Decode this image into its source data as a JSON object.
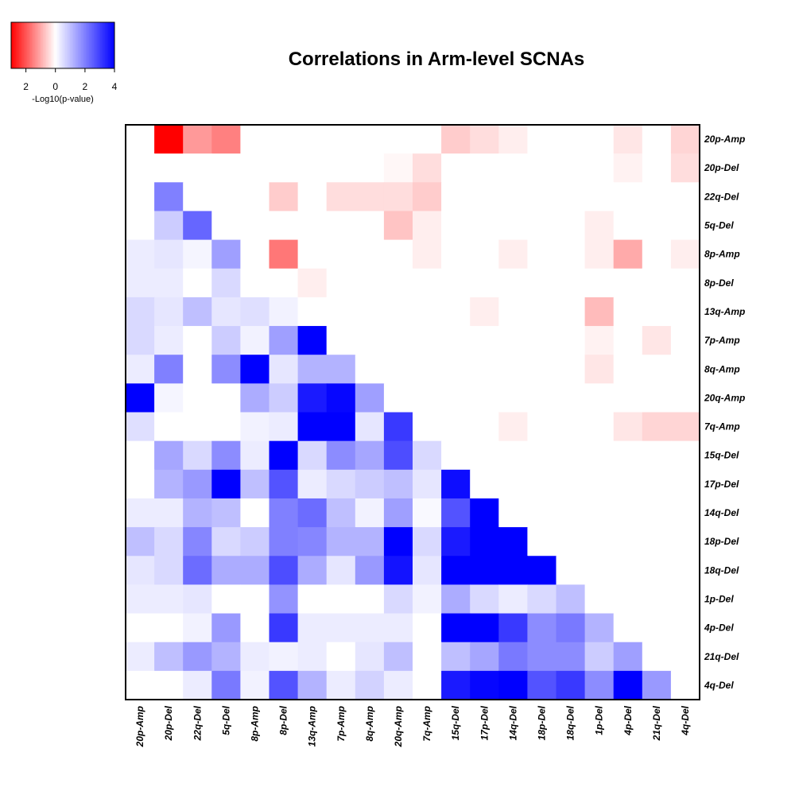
{
  "chart_data": {
    "type": "heatmap",
    "title": "Correlations in Arm-level SCNAs",
    "rows": [
      "20p-Amp",
      "20p-Del",
      "22q-Del",
      "5q-Del",
      "8p-Amp",
      "8p-Del",
      "13q-Amp",
      "7p-Amp",
      "8q-Amp",
      "20q-Amp",
      "7q-Amp",
      "15q-Del",
      "17p-Del",
      "14q-Del",
      "18p-Del",
      "18q-Del",
      "1p-Del",
      "4p-Del",
      "21q-Del",
      "4q-Del"
    ],
    "columns": [
      "20p-Amp",
      "20p-Del",
      "22q-Del",
      "5q-Del",
      "8p-Amp",
      "8p-Del",
      "13q-Amp",
      "7p-Amp",
      "8q-Amp",
      "20q-Amp",
      "7q-Amp",
      "15q-Del",
      "17p-Del",
      "14q-Del",
      "18p-Del",
      "18q-Del",
      "1p-Del",
      "4p-Del",
      "21q-Del",
      "4q-Del"
    ],
    "values": [
      [
        0,
        -3.0,
        -1.2,
        -1.5,
        0,
        0,
        0,
        0,
        0,
        0,
        0,
        -0.6,
        -0.4,
        -0.2,
        0,
        0,
        0,
        -0.3,
        0,
        -0.5
      ],
      [
        0,
        0,
        0,
        0,
        0,
        0,
        0,
        0,
        0,
        -0.1,
        -0.4,
        0,
        0,
        0,
        0,
        0,
        0,
        -0.15,
        0,
        -0.4
      ],
      [
        0,
        2.0,
        0,
        0,
        0,
        -0.6,
        0,
        -0.4,
        -0.4,
        -0.4,
        -0.6,
        0,
        0,
        0,
        0,
        0,
        0,
        0,
        0,
        0
      ],
      [
        0,
        0.8,
        2.4,
        0,
        0,
        0,
        0,
        0,
        0,
        -0.7,
        -0.2,
        0,
        0,
        0,
        0,
        0,
        -0.2,
        0,
        0,
        0
      ],
      [
        0.3,
        0.4,
        0.15,
        1.5,
        0,
        -1.6,
        0,
        0,
        0,
        0,
        -0.2,
        0,
        0,
        -0.2,
        0,
        0,
        -0.2,
        -1.0,
        0,
        -0.2
      ],
      [
        0.3,
        0.3,
        0,
        0.6,
        0,
        0,
        -0.2,
        0,
        0,
        0,
        0,
        0,
        0,
        0,
        0,
        0,
        0,
        0,
        0,
        0
      ],
      [
        0.6,
        0.4,
        1.0,
        0.4,
        0.5,
        0.2,
        0,
        0,
        0,
        0,
        0,
        0,
        -0.2,
        0,
        0,
        0,
        -0.8,
        0,
        0,
        0
      ],
      [
        0.6,
        0.3,
        0,
        0.8,
        0.2,
        1.5,
        4.0,
        0,
        0,
        0,
        0,
        0,
        0,
        0,
        0,
        0,
        -0.15,
        0,
        -0.3,
        0
      ],
      [
        0.3,
        2.0,
        0,
        1.8,
        4.0,
        0.4,
        1.2,
        1.2,
        0,
        0,
        0,
        0,
        0,
        0,
        0,
        0,
        -0.3,
        0,
        0,
        0
      ],
      [
        4.0,
        0.15,
        0,
        0,
        1.3,
        0.8,
        3.6,
        3.9,
        1.5,
        0,
        0,
        0,
        0,
        0,
        0,
        0,
        0,
        0,
        0,
        0
      ],
      [
        0.5,
        0,
        0,
        0,
        0.2,
        0.3,
        4.0,
        4.0,
        0.4,
        3.1,
        0,
        0,
        0,
        -0.2,
        0,
        0,
        0,
        -0.3,
        -0.5,
        -0.5
      ],
      [
        0,
        1.4,
        0.6,
        1.8,
        0.3,
        4.0,
        0.6,
        1.8,
        1.4,
        2.8,
        0.6,
        0,
        0,
        0,
        0,
        0,
        0,
        0,
        0,
        0
      ],
      [
        0,
        1.2,
        1.6,
        4.0,
        1.0,
        2.7,
        0.3,
        0.6,
        0.8,
        1.0,
        0.4,
        3.8,
        0,
        0,
        0,
        0,
        0,
        0,
        0,
        0
      ],
      [
        0.3,
        0.3,
        1.2,
        1.0,
        0,
        2.0,
        2.3,
        1.0,
        0.2,
        1.5,
        0.1,
        2.7,
        4.0,
        0,
        0,
        0,
        0,
        0,
        0,
        0
      ],
      [
        1.0,
        0.6,
        1.9,
        0.6,
        0.8,
        2.0,
        1.9,
        1.2,
        1.2,
        4.0,
        0.6,
        3.6,
        4.0,
        4.0,
        0,
        0,
        0,
        0,
        0,
        0
      ],
      [
        0.4,
        0.6,
        2.3,
        1.3,
        1.3,
        2.8,
        1.3,
        0.4,
        1.6,
        3.7,
        0.4,
        4.0,
        4.0,
        4.0,
        4.0,
        0,
        0,
        0,
        0,
        0
      ],
      [
        0.3,
        0.3,
        0.4,
        0,
        0,
        1.7,
        0,
        0,
        0,
        0.6,
        0.2,
        1.3,
        0.6,
        0.3,
        0.6,
        1.0,
        0,
        0,
        0,
        0
      ],
      [
        0,
        0,
        0.2,
        1.6,
        0,
        3.1,
        0.3,
        0.3,
        0.3,
        0.3,
        0,
        4.0,
        4.0,
        3.1,
        1.8,
        2.1,
        1.2,
        0,
        0,
        0
      ],
      [
        0.3,
        1.0,
        1.6,
        1.2,
        0.3,
        0.2,
        0.3,
        0,
        0.4,
        1.0,
        0,
        1.0,
        1.4,
        2.1,
        1.8,
        1.8,
        0.8,
        1.5,
        0,
        0
      ],
      [
        0,
        0,
        0.3,
        2.1,
        0.2,
        2.7,
        1.2,
        0.3,
        0.7,
        0.3,
        0,
        3.6,
        3.9,
        4.0,
        2.7,
        3.1,
        1.8,
        4.0,
        1.6,
        0
      ]
    ],
    "color_scale": {
      "negative": "#ff0000",
      "zero": "#ffffff",
      "positive": "#0000ff",
      "min": -3,
      "max": 4
    },
    "legend": {
      "label": "-Log10(p-value)",
      "ticks": [
        {
          "label": "2",
          "value": -2
        },
        {
          "label": "0",
          "value": 0
        },
        {
          "label": "2",
          "value": 2
        },
        {
          "label": "4",
          "value": 4
        }
      ]
    }
  }
}
